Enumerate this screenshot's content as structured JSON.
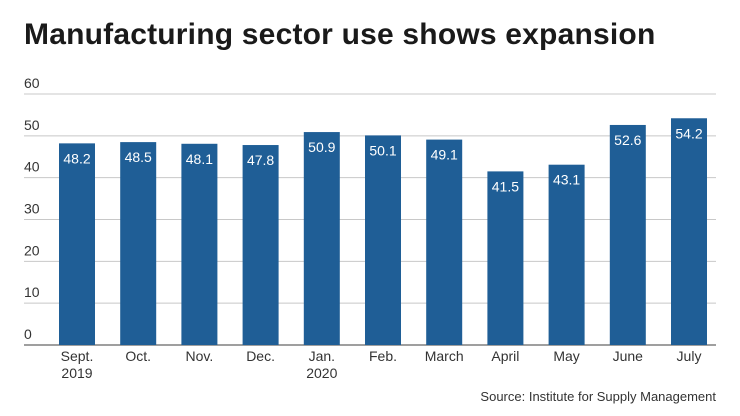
{
  "chart_data": {
    "type": "bar",
    "title": "Manufacturing sector use shows expansion",
    "categories": [
      [
        "Sept.",
        "2019"
      ],
      [
        "Oct."
      ],
      [
        "Nov."
      ],
      [
        "Dec."
      ],
      [
        "Jan.",
        "2020"
      ],
      [
        "Feb."
      ],
      [
        "March"
      ],
      [
        "April"
      ],
      [
        "May"
      ],
      [
        "June"
      ],
      [
        "July"
      ]
    ],
    "values": [
      48.2,
      48.5,
      48.1,
      47.8,
      50.9,
      50.1,
      49.1,
      41.5,
      43.1,
      52.6,
      54.2
    ],
    "data_labels": [
      "48.2",
      "48.5",
      "48.1",
      "47.8",
      "50.9",
      "50.1",
      "49.1",
      "41.5",
      "43.1",
      "52.6",
      "54.2"
    ],
    "yticks": [
      0,
      10,
      20,
      30,
      40,
      50,
      60
    ],
    "ylim": [
      0,
      60
    ],
    "xlabel": "",
    "ylabel": "",
    "grid": true,
    "source": "Source: Institute for Supply Management",
    "colors": {
      "bar": "#1f5e96",
      "grid": "#c8c8c8",
      "axis": "#666666",
      "label": "#ffffff",
      "text": "#333333"
    }
  }
}
